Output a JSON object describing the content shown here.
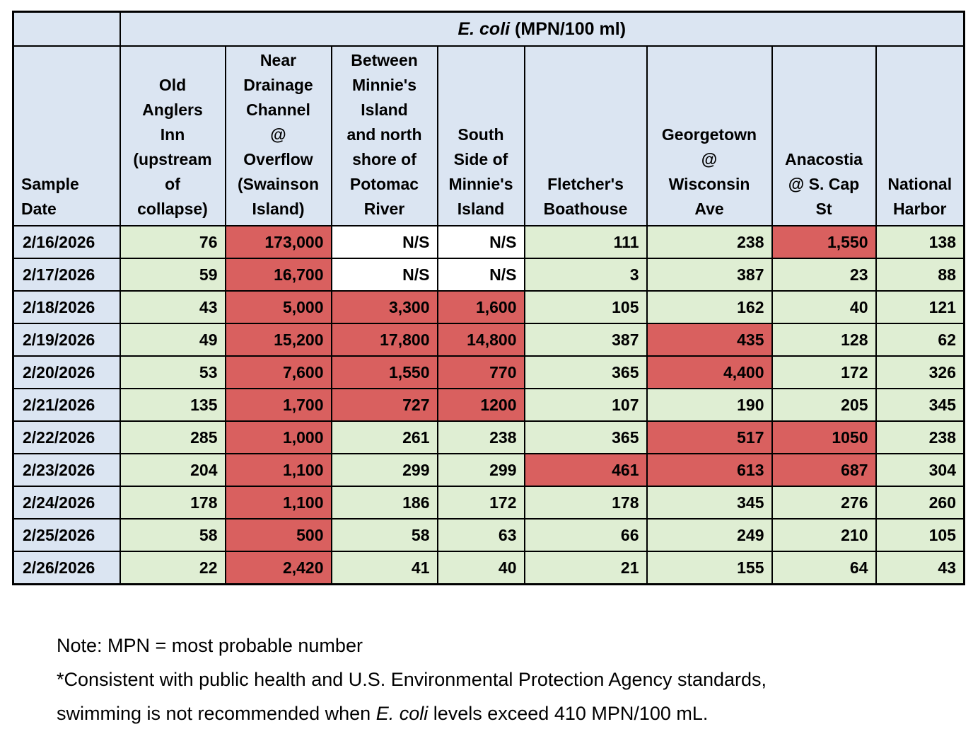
{
  "colors": {
    "header_blue": "#dbe5f2",
    "safe_green": "#dfeed3",
    "exceed_red": "#d9605f",
    "not_sampled_white": "#ffffff",
    "border_black": "#000000"
  },
  "chart_data": {
    "type": "table",
    "title_italic": "E. coli",
    "title_rest": " (MPN/100 ml)",
    "columns": [
      "Sample\nDate",
      "Old\nAnglers\nInn\n(upstream\nof\ncollapse)",
      "Near\nDrainage\nChannel\n@\nOverflow\n(Swainson\nIsland)",
      "Between\nMinnie's\nIsland\nand north\nshore of\nPotomac\nRiver",
      "South\nSide of\nMinnie's\nIsland",
      "Fletcher's\nBoathouse",
      "Georgetown\n@\nWisconsin\nAve",
      "Anacostia\n@ S. Cap\nSt",
      "National\nHarbor"
    ],
    "rows": [
      {
        "date": "2/16/2026",
        "values": [
          "76",
          "173,000",
          "N/S",
          "N/S",
          "111",
          "238",
          "1,550",
          "138"
        ],
        "status": [
          "green",
          "red",
          "white",
          "white",
          "green",
          "green",
          "red",
          "green"
        ]
      },
      {
        "date": "2/17/2026",
        "values": [
          "59",
          "16,700",
          "N/S",
          "N/S",
          "3",
          "387",
          "23",
          "88"
        ],
        "status": [
          "green",
          "red",
          "white",
          "white",
          "green",
          "green",
          "green",
          "green"
        ]
      },
      {
        "date": "2/18/2026",
        "values": [
          "43",
          "5,000",
          "3,300",
          "1,600",
          "105",
          "162",
          "40",
          "121"
        ],
        "status": [
          "green",
          "red",
          "red",
          "red",
          "green",
          "green",
          "green",
          "green"
        ]
      },
      {
        "date": "2/19/2026",
        "values": [
          "49",
          "15,200",
          "17,800",
          "14,800",
          "387",
          "435",
          "128",
          "62"
        ],
        "status": [
          "green",
          "red",
          "red",
          "red",
          "green",
          "red",
          "green",
          "green"
        ]
      },
      {
        "date": "2/20/2026",
        "values": [
          "53",
          "7,600",
          "1,550",
          "770",
          "365",
          "4,400",
          "172",
          "326"
        ],
        "status": [
          "green",
          "red",
          "red",
          "red",
          "green",
          "red",
          "green",
          "green"
        ]
      },
      {
        "date": "2/21/2026",
        "values": [
          "135",
          "1,700",
          "727",
          "1200",
          "107",
          "190",
          "205",
          "345"
        ],
        "status": [
          "green",
          "red",
          "red",
          "red",
          "green",
          "green",
          "green",
          "green"
        ]
      },
      {
        "date": "2/22/2026",
        "values": [
          "285",
          "1,000",
          "261",
          "238",
          "365",
          "517",
          "1050",
          "238"
        ],
        "status": [
          "green",
          "red",
          "green",
          "green",
          "green",
          "red",
          "red",
          "green"
        ]
      },
      {
        "date": "2/23/2026",
        "values": [
          "204",
          "1,100",
          "299",
          "299",
          "461",
          "613",
          "687",
          "304"
        ],
        "status": [
          "green",
          "red",
          "green",
          "green",
          "red",
          "red",
          "red",
          "green"
        ]
      },
      {
        "date": "2/24/2026",
        "values": [
          "178",
          "1,100",
          "186",
          "172",
          "178",
          "345",
          "276",
          "260"
        ],
        "status": [
          "green",
          "red",
          "green",
          "green",
          "green",
          "green",
          "green",
          "green"
        ]
      },
      {
        "date": "2/25/2026",
        "values": [
          "58",
          "500",
          "58",
          "63",
          "66",
          "249",
          "210",
          "105"
        ],
        "status": [
          "green",
          "red",
          "green",
          "green",
          "green",
          "green",
          "green",
          "green"
        ]
      },
      {
        "date": "2/26/2026",
        "values": [
          "22",
          "2,420",
          "41",
          "40",
          "21",
          "155",
          "64",
          "43"
        ],
        "status": [
          "green",
          "red",
          "green",
          "green",
          "green",
          "green",
          "green",
          "green"
        ]
      }
    ]
  },
  "notes": {
    "line1": "Note: MPN = most probable number",
    "line2": "*Consistent with public health and U.S. Environmental Protection Agency standards,",
    "line3_pre": "swimming is not recommended when ",
    "line3_italic": "E. coli",
    "line3_post": " levels exceed 410 MPN/100 mL."
  }
}
